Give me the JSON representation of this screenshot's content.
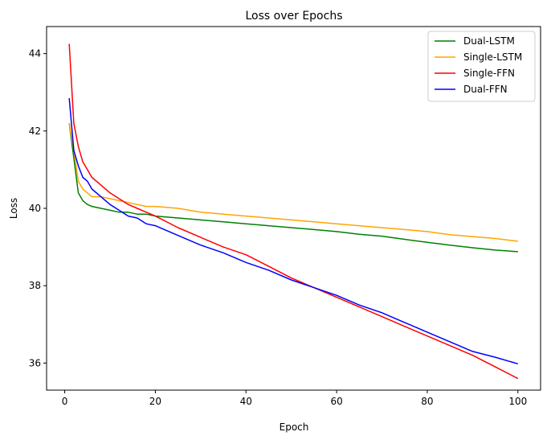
{
  "chart_data": {
    "type": "line",
    "title": "Loss over Epochs",
    "xlabel": "Epoch",
    "ylabel": "Loss",
    "xlim": [
      -4,
      105
    ],
    "ylim": [
      35.3,
      44.7
    ],
    "xticks": [
      0,
      20,
      40,
      60,
      80,
      100
    ],
    "yticks": [
      36,
      38,
      40,
      42,
      44
    ],
    "grid": false,
    "legend_position": "top-right",
    "series": [
      {
        "name": "Dual-LSTM",
        "color": "#008000",
        "x": [
          1,
          2,
          3,
          4,
          5,
          6,
          8,
          10,
          12,
          14,
          16,
          18,
          20,
          25,
          30,
          35,
          40,
          45,
          50,
          55,
          60,
          65,
          70,
          75,
          80,
          85,
          90,
          95,
          100
        ],
        "y": [
          42.2,
          41.3,
          40.4,
          40.2,
          40.1,
          40.05,
          40.0,
          39.95,
          39.9,
          39.9,
          39.85,
          39.85,
          39.8,
          39.75,
          39.7,
          39.65,
          39.6,
          39.55,
          39.5,
          39.45,
          39.4,
          39.33,
          39.28,
          39.2,
          39.12,
          39.05,
          38.98,
          38.92,
          38.88
        ]
      },
      {
        "name": "Single-LSTM",
        "color": "#ffa500",
        "x": [
          1,
          2,
          3,
          4,
          5,
          6,
          8,
          10,
          12,
          14,
          16,
          18,
          20,
          25,
          30,
          35,
          40,
          45,
          50,
          55,
          60,
          65,
          70,
          75,
          80,
          85,
          90,
          95,
          100
        ],
        "y": [
          42.2,
          41.5,
          40.7,
          40.5,
          40.4,
          40.3,
          40.3,
          40.25,
          40.2,
          40.15,
          40.1,
          40.05,
          40.05,
          40.0,
          39.9,
          39.85,
          39.8,
          39.75,
          39.7,
          39.65,
          39.6,
          39.55,
          39.5,
          39.45,
          39.4,
          39.32,
          39.27,
          39.22,
          39.15
        ]
      },
      {
        "name": "Single-FFN",
        "color": "#ff0000",
        "x": [
          1,
          2,
          3,
          4,
          5,
          6,
          8,
          10,
          12,
          14,
          16,
          18,
          20,
          25,
          30,
          35,
          40,
          45,
          50,
          55,
          60,
          65,
          70,
          75,
          80,
          85,
          90,
          95,
          100
        ],
        "y": [
          44.25,
          42.2,
          41.6,
          41.2,
          41.0,
          40.8,
          40.6,
          40.4,
          40.25,
          40.1,
          40.0,
          39.9,
          39.8,
          39.5,
          39.25,
          39.0,
          38.8,
          38.5,
          38.2,
          37.95,
          37.7,
          37.45,
          37.2,
          36.95,
          36.7,
          36.45,
          36.2,
          35.9,
          35.6
        ]
      },
      {
        "name": "Dual-FFN",
        "color": "#0000ff",
        "x": [
          1,
          2,
          3,
          4,
          5,
          6,
          8,
          10,
          12,
          14,
          16,
          18,
          20,
          25,
          30,
          35,
          40,
          45,
          50,
          55,
          60,
          65,
          70,
          75,
          80,
          85,
          90,
          95,
          100
        ],
        "y": [
          42.85,
          41.5,
          41.1,
          40.8,
          40.7,
          40.5,
          40.3,
          40.1,
          39.95,
          39.8,
          39.75,
          39.6,
          39.55,
          39.3,
          39.05,
          38.85,
          38.6,
          38.4,
          38.15,
          37.95,
          37.75,
          37.5,
          37.3,
          37.05,
          36.8,
          36.55,
          36.3,
          36.15,
          35.98
        ]
      }
    ]
  }
}
